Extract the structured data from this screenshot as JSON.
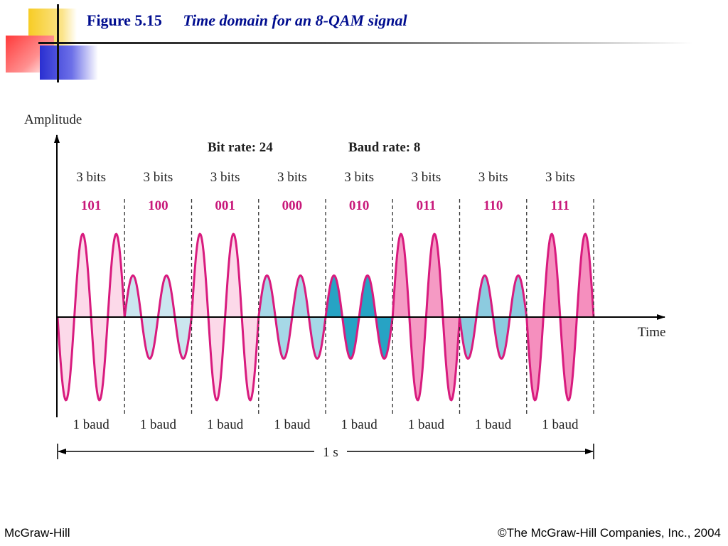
{
  "slide": {
    "figure_label": "Figure 5.15",
    "figure_caption": "Time domain for an 8-QAM signal"
  },
  "diagram": {
    "y_axis_label": "Amplitude",
    "x_axis_label": "Time",
    "bit_rate_label": "Bit rate: 24",
    "baud_rate_label": "Baud rate: 8",
    "duration_label": "1 s",
    "segments": [
      {
        "bits_label": "3 bits",
        "code": "101",
        "baud_label": "1 baud",
        "amplitude": 1.0,
        "phase_deg": 180,
        "fill": "#fcd9e9"
      },
      {
        "bits_label": "3 bits",
        "code": "100",
        "baud_label": "1 baud",
        "amplitude": 0.5,
        "phase_deg": 0,
        "fill": "#cbe6ef"
      },
      {
        "bits_label": "3 bits",
        "code": "001",
        "baud_label": "1 baud",
        "amplitude": 1.0,
        "phase_deg": 0,
        "fill": "#fcd9e9"
      },
      {
        "bits_label": "3 bits",
        "code": "000",
        "baud_label": "1 baud",
        "amplitude": 0.5,
        "phase_deg": 0,
        "fill": "#a6d8e7"
      },
      {
        "bits_label": "3 bits",
        "code": "010",
        "baud_label": "1 baud",
        "amplitude": 0.5,
        "phase_deg": 0,
        "fill": "#27a3c4"
      },
      {
        "bits_label": "3 bits",
        "code": "011",
        "baud_label": "1 baud",
        "amplitude": 1.0,
        "phase_deg": 0,
        "fill": "#f59ac4"
      },
      {
        "bits_label": "3 bits",
        "code": "110",
        "baud_label": "1 baud",
        "amplitude": 0.5,
        "phase_deg": 180,
        "fill": "#8ccbdf"
      },
      {
        "bits_label": "3 bits",
        "code": "111",
        "baud_label": "1 baud",
        "amplitude": 1.0,
        "phase_deg": 180,
        "fill": "#f58fbe"
      }
    ],
    "colors": {
      "wave": "#d81b7e",
      "code_text": "#c8187a",
      "axis": "#000000",
      "title": "#000d8f"
    }
  },
  "footer": {
    "left": "McGraw-Hill",
    "right": "©The McGraw-Hill Companies, Inc., 2004"
  }
}
